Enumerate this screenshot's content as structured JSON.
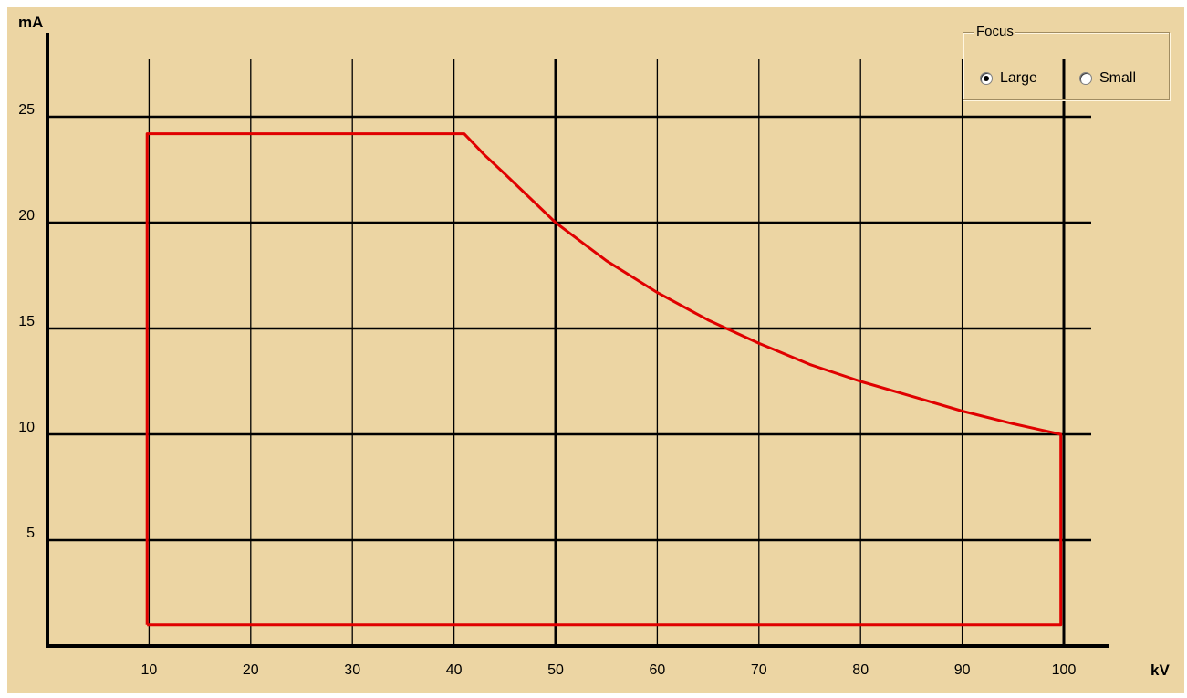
{
  "chart_data": {
    "type": "line",
    "xlabel": "kV",
    "ylabel": "mA",
    "xlim": [
      0,
      104
    ],
    "ylim": [
      0,
      27
    ],
    "x_ticks": [
      10,
      20,
      30,
      40,
      50,
      60,
      70,
      80,
      90,
      100
    ],
    "y_ticks": [
      5,
      10,
      15,
      20,
      25
    ],
    "grid": true,
    "series": [
      {
        "color": "#e00000",
        "points": [
          [
            9.8,
            1
          ],
          [
            9.8,
            24.2
          ],
          [
            41,
            24.2
          ],
          [
            43,
            23.2
          ],
          [
            45,
            22.3
          ],
          [
            50,
            20
          ],
          [
            55,
            18.2
          ],
          [
            60,
            16.7
          ],
          [
            65,
            15.4
          ],
          [
            70,
            14.3
          ],
          [
            75,
            13.3
          ],
          [
            80,
            12.5
          ],
          [
            85,
            11.8
          ],
          [
            90,
            11.1
          ],
          [
            95,
            10.5
          ],
          [
            99.7,
            10
          ],
          [
            99.7,
            1
          ],
          [
            9.8,
            1
          ]
        ]
      }
    ]
  },
  "focus": {
    "title": "Focus",
    "options": [
      {
        "label": "Large",
        "selected": true
      },
      {
        "label": "Small",
        "selected": false
      }
    ]
  }
}
